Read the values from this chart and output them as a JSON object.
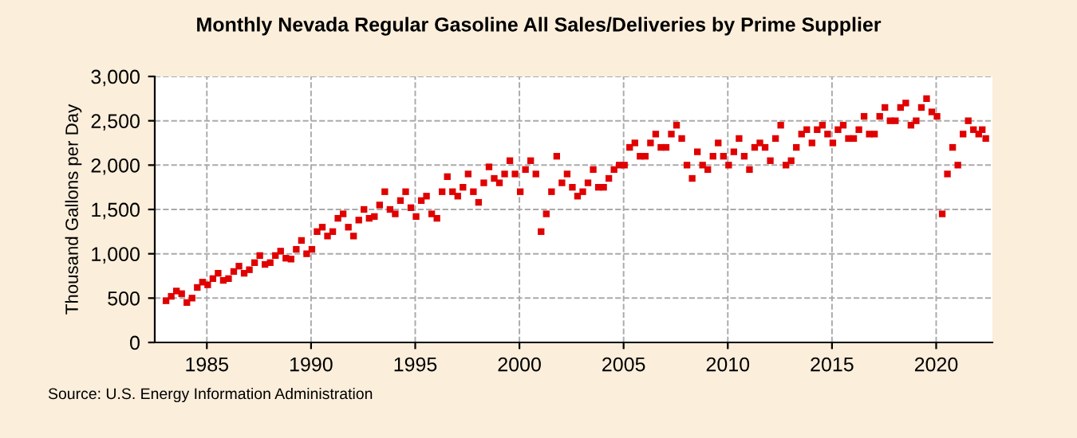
{
  "chart_data": {
    "type": "scatter",
    "title": "Monthly Nevada Regular Gasoline All Sales/Deliveries by Prime Supplier",
    "ylabel": "Thousand Gallons per Day",
    "annotations": [
      "Source: U.S. Energy Information Administration"
    ],
    "series": [
      {
        "color": "#e00000",
        "x": [
          1983.04,
          1983.29,
          1983.54,
          1983.79,
          1984.04,
          1984.29,
          1984.54,
          1984.79,
          1985.04,
          1985.29,
          1985.54,
          1985.79,
          1986.04,
          1986.29,
          1986.54,
          1986.79,
          1987.04,
          1987.29,
          1987.54,
          1987.79,
          1988.04,
          1988.29,
          1988.54,
          1988.79,
          1989.04,
          1989.29,
          1989.54,
          1989.79,
          1990.04,
          1990.29,
          1990.54,
          1990.79,
          1991.04,
          1991.29,
          1991.54,
          1991.79,
          1992.04,
          1992.29,
          1992.54,
          1992.79,
          1993.04,
          1993.29,
          1993.54,
          1993.79,
          1994.04,
          1994.29,
          1994.54,
          1994.79,
          1995.04,
          1995.29,
          1995.54,
          1995.79,
          1996.04,
          1996.29,
          1996.54,
          1996.79,
          1997.04,
          1997.29,
          1997.54,
          1997.79,
          1998.04,
          1998.29,
          1998.54,
          1998.79,
          1999.04,
          1999.29,
          1999.54,
          1999.79,
          2000.04,
          2000.29,
          2000.54,
          2000.79,
          2001.04,
          2001.29,
          2001.54,
          2001.79,
          2002.04,
          2002.29,
          2002.54,
          2002.79,
          2003.04,
          2003.29,
          2003.54,
          2003.79,
          2004.04,
          2004.29,
          2004.54,
          2004.79,
          2005.04,
          2005.29,
          2005.54,
          2005.79,
          2006.04,
          2006.29,
          2006.54,
          2006.79,
          2007.04,
          2007.29,
          2007.54,
          2007.79,
          2008.04,
          2008.29,
          2008.54,
          2008.79,
          2009.04,
          2009.29,
          2009.54,
          2009.79,
          2010.04,
          2010.29,
          2010.54,
          2010.79,
          2011.04,
          2011.29,
          2011.54,
          2011.79,
          2012.04,
          2012.29,
          2012.54,
          2012.79,
          2013.04,
          2013.29,
          2013.54,
          2013.79,
          2014.04,
          2014.29,
          2014.54,
          2014.79,
          2015.04,
          2015.29,
          2015.54,
          2015.79,
          2016.04,
          2016.29,
          2016.54,
          2016.79,
          2017.04,
          2017.29,
          2017.54,
          2017.79,
          2018.04,
          2018.29,
          2018.54,
          2018.79,
          2019.04,
          2019.29,
          2019.54,
          2019.79,
          2020.04,
          2020.29,
          2020.54,
          2020.79,
          2021.04,
          2021.29,
          2021.54,
          2021.79,
          2022.04,
          2022.21,
          2022.38
        ],
        "values": [
          470,
          520,
          580,
          550,
          450,
          500,
          620,
          680,
          650,
          720,
          780,
          700,
          720,
          800,
          860,
          780,
          820,
          900,
          980,
          880,
          900,
          980,
          1030,
          950,
          940,
          1050,
          1150,
          1000,
          1050,
          1250,
          1300,
          1200,
          1250,
          1400,
          1450,
          1300,
          1200,
          1380,
          1500,
          1400,
          1420,
          1550,
          1700,
          1500,
          1450,
          1600,
          1700,
          1520,
          1420,
          1600,
          1650,
          1450,
          1400,
          1700,
          1870,
          1700,
          1650,
          1750,
          1900,
          1700,
          1580,
          1800,
          1980,
          1850,
          1800,
          1900,
          2050,
          1900,
          1700,
          1950,
          2050,
          1900,
          1250,
          1450,
          1700,
          2100,
          1800,
          1900,
          1750,
          1650,
          1700,
          1800,
          1950,
          1750,
          1750,
          1850,
          1950,
          2000,
          2000,
          2200,
          2250,
          2100,
          2100,
          2250,
          2350,
          2200,
          2200,
          2350,
          2450,
          2300,
          2000,
          1850,
          2150,
          2000,
          1950,
          2100,
          2250,
          2100,
          2000,
          2150,
          2300,
          2100,
          1950,
          2200,
          2250,
          2200,
          2050,
          2300,
          2450,
          2000,
          2050,
          2200,
          2350,
          2400,
          2250,
          2400,
          2450,
          2350,
          2250,
          2400,
          2450,
          2300,
          2300,
          2400,
          2550,
          2350,
          2350,
          2550,
          2650,
          2500,
          2500,
          2650,
          2700,
          2450,
          2500,
          2650,
          2750,
          2600,
          2550,
          1450,
          1900,
          2200,
          2000,
          2350,
          2500,
          2400,
          2350,
          2400,
          2300
        ]
      }
    ],
    "marker": "square",
    "xlim": [
      1982.5,
      2022.7
    ],
    "xticks": [
      1985,
      1990,
      1995,
      2000,
      2005,
      2010,
      2015,
      2020
    ],
    "ylim": [
      0,
      3000
    ],
    "yticks": [
      0,
      500,
      {
        "value": 1000,
        "label": "1,000"
      },
      {
        "value": 1500,
        "label": "1,500"
      },
      {
        "value": 2000,
        "label": "2,000"
      },
      {
        "value": 2500,
        "label": "2,500"
      },
      {
        "value": 3000,
        "label": "3,000"
      }
    ],
    "grid": true
  }
}
